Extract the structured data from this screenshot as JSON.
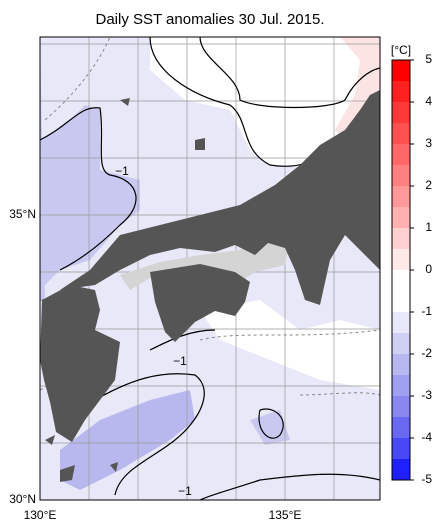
{
  "title": "Daily SST anomalies 30 Jul. 2015.",
  "lat_labels": [
    "35°N",
    "30°N"
  ],
  "lon_labels": [
    "130°E",
    "135°E"
  ],
  "contour_labels": [
    "−1",
    "−1",
    "−1"
  ],
  "colorbar": {
    "unit": "[°C]",
    "range": [
      -5,
      5
    ],
    "ticks": [
      5,
      4,
      3,
      2,
      1,
      0,
      -1,
      -2,
      -3,
      -4,
      -5
    ],
    "colors": [
      "#ff0000",
      "#ff2020",
      "#ff3838",
      "#ff5050",
      "#ff6868",
      "#ff8080",
      "#ff9898",
      "#ffb0b0",
      "#ffd0d0",
      "#ffe8e8",
      "#ffffff",
      "#ffffff",
      "#e8e8fa",
      "#d0d0f5",
      "#b8b8f0",
      "#a0a0f0",
      "#8888f0",
      "#6868f0",
      "#4848f5",
      "#2020ff"
    ]
  }
}
